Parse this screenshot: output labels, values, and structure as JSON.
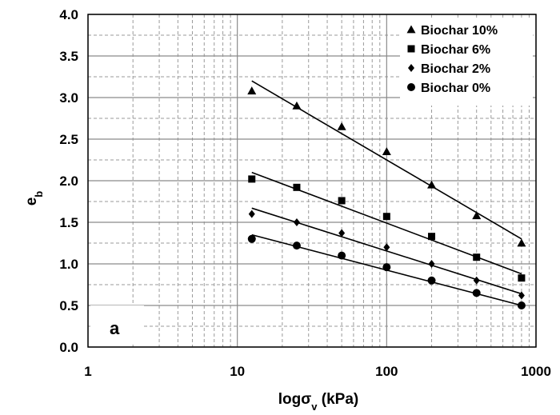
{
  "chart_data": {
    "type": "scatter",
    "panel_label": "a",
    "xlabel_main": "logσ",
    "xlabel_sub": "v",
    "xlabel_unit": " (kPa)",
    "ylabel_main": "e",
    "ylabel_sub": "b",
    "x_scale": "log",
    "xlim": [
      1,
      1000
    ],
    "ylim": [
      0,
      4
    ],
    "x_ticks": [
      1,
      10,
      100,
      1000
    ],
    "x_tick_labels": [
      "1",
      "10",
      "100",
      "1000"
    ],
    "y_ticks": [
      0,
      0.5,
      1,
      1.5,
      2,
      2.5,
      3,
      3.5,
      4
    ],
    "y_tick_labels": [
      "0.0",
      "0.5",
      "1.0",
      "1.5",
      "2.0",
      "2.5",
      "3.0",
      "3.5",
      "4.0"
    ],
    "grid": true,
    "legend_position": "top-right",
    "x": [
      12.5,
      25,
      50,
      100,
      200,
      400,
      800
    ],
    "series": [
      {
        "name": "Biochar 10%",
        "marker": "triangle",
        "values": [
          3.08,
          2.9,
          2.65,
          2.35,
          1.95,
          1.58,
          1.25
        ],
        "fit": [
          3.2,
          1.3
        ]
      },
      {
        "name": "Biochar 6%",
        "marker": "square",
        "values": [
          2.02,
          1.92,
          1.76,
          1.57,
          1.33,
          1.08,
          0.83
        ],
        "fit": [
          2.1,
          0.88
        ]
      },
      {
        "name": "Biochar 2%",
        "marker": "diamond",
        "values": [
          1.6,
          1.5,
          1.37,
          1.2,
          1.0,
          0.8,
          0.62
        ],
        "fit": [
          1.67,
          0.64
        ]
      },
      {
        "name": "Biochar 0%",
        "marker": "circle",
        "values": [
          1.3,
          1.22,
          1.1,
          0.96,
          0.8,
          0.65,
          0.5
        ],
        "fit": [
          1.35,
          0.5
        ]
      }
    ]
  }
}
